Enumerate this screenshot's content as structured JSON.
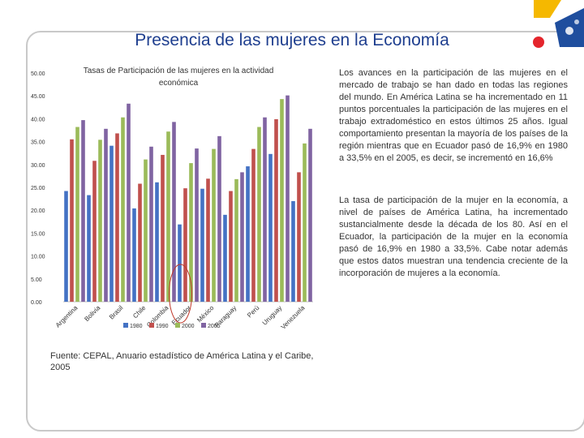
{
  "slide": {
    "title": "Presencia de las mujeres en la Economía",
    "paragraphs": [
      "Los avances en la participación de las mujeres en el mercado de trabajo se han dado en todas las regiones del mundo. En América Latina se ha incrementado en 11 puntos porcentuales la participación de las mujeres en el trabajo extradoméstico en estos últimos 25 años. Igual comportamiento presentan la mayoría de los países de la región mientras que en Ecuador pasó de 16,9% en 1980 a 33,5% en el 2005, es decir, se incrementó en 16,6%",
      "La tasa de participación de la mujer en la economía, a nivel de países de América Latina, ha incrementado sustancialmente desde la década de los 80. Así en el Ecuador, la participación de la mujer en la economía pasó de 16,9% en 1980 a 33,5%. Cabe notar además que estos datos muestran una tendencia creciente de la incorporación de mujeres a la economía."
    ],
    "source": "Fuente: CEPAL, Anuario estadístico de América Latina y el Caribe, 2005"
  },
  "colors": {
    "title": "#1f3f8f",
    "s1980": "#4472c4",
    "s1990": "#c0504d",
    "s2000": "#9bbb59",
    "s2005": "#8064a2",
    "highlight_circle": "#c0392b",
    "logo_yellow": "#f5b800",
    "logo_blue": "#1f4e9e",
    "logo_red": "#e4252c"
  },
  "chart_data": {
    "type": "bar",
    "title": "Tasas de Participación de las mujeres en la actividad económica",
    "categories": [
      "Argentina",
      "Bolivia",
      "Brasil",
      "Chile",
      "Colombia",
      "Ecuador",
      "México",
      "Paraguay",
      "Perú",
      "Uruguay",
      "Venezuela"
    ],
    "series": [
      {
        "name": "1980",
        "values": [
          24.2,
          23.3,
          34.1,
          20.4,
          26.1,
          16.9,
          24.7,
          19.0,
          29.6,
          32.3,
          22.0
        ]
      },
      {
        "name": "1990",
        "values": [
          35.5,
          30.8,
          36.8,
          25.8,
          32.1,
          24.8,
          26.9,
          24.2,
          33.4,
          39.9,
          28.3
        ]
      },
      {
        "name": "2000",
        "values": [
          38.2,
          35.4,
          40.3,
          31.1,
          37.2,
          30.3,
          33.4,
          26.8,
          38.2,
          44.3,
          34.6
        ]
      },
      {
        "name": "2005",
        "values": [
          39.7,
          37.8,
          43.3,
          33.9,
          39.3,
          33.5,
          36.2,
          28.3,
          40.3,
          45.1,
          37.8
        ]
      }
    ],
    "yticks": [
      "0.00",
      "5.00",
      "10.00",
      "15.00",
      "20.00",
      "25.00",
      "30.00",
      "35.00",
      "40.00",
      "45.00",
      "50.00"
    ],
    "ylim": [
      0,
      50
    ],
    "grid": false,
    "legend_position": "bottom"
  }
}
